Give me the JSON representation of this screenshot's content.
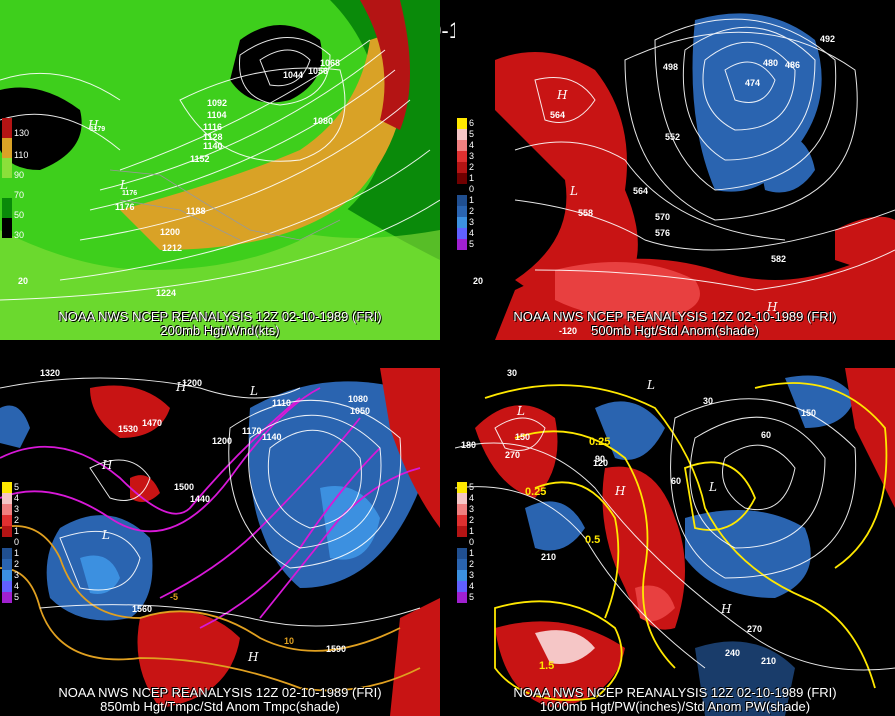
{
  "title": "12Z 02-10-1989 (FRI)",
  "panels": [
    {
      "id": "p200",
      "caption_line1": "NOAA NWS NCEP REANALYSIS 12Z 02-10-1989 (FRI)",
      "caption_line2": "200mb Hgt/Wnd(kts)",
      "legend": [
        "130",
        "110",
        "90",
        "70",
        "50",
        "30"
      ],
      "contour_labels": [
        "1044",
        "1056",
        "1068",
        "1080",
        "1092",
        "1104",
        "1116",
        "1128",
        "1140",
        "1152",
        "1176",
        "1188",
        "1200",
        "1212",
        "1224",
        "1179",
        "1176",
        "20"
      ]
    },
    {
      "id": "p500",
      "caption_line1": "NOAA NWS NCEP REANALYSIS 12Z 02-10-1989 (FRI)",
      "caption_line2": "500mb Hgt/Std Anom(shade)",
      "legend": [
        "6",
        "5",
        "4",
        "3",
        "2",
        "1",
        "0",
        "1",
        "2",
        "3",
        "4",
        "5"
      ],
      "contour_labels": [
        "492",
        "486",
        "480",
        "474",
        "498",
        "564",
        "552",
        "558",
        "564",
        "570",
        "576",
        "582",
        "20",
        "-120"
      ]
    },
    {
      "id": "p850",
      "caption_line1": "NOAA NWS NCEP REANALYSIS 12Z 02-10-1989 (FRI)",
      "caption_line2": "850mb Hgt/Tmpc/Std Anom Tmpc(shade)",
      "legend": [
        "5",
        "4",
        "3",
        "2",
        "1",
        "0",
        "1",
        "2",
        "3",
        "4",
        "5"
      ],
      "contour_labels": [
        "1320",
        "1530",
        "1470",
        "1200",
        "1110",
        "1170",
        "1140",
        "1080",
        "1050",
        "1200",
        "1500",
        "1440",
        "1560",
        "-5",
        "10",
        "1590"
      ]
    },
    {
      "id": "p1000",
      "caption_line1": "NOAA NWS NCEP REANALYSIS 12Z 02-10-1989 (FRI)",
      "caption_line2": "1000mb Hgt/PW(inches)/Std Anom PW(shade)",
      "legend": [
        "5",
        "4",
        "3",
        "2",
        "1",
        "0",
        "1",
        "2",
        "3",
        "4",
        "5"
      ],
      "contour_labels": [
        "180",
        "30",
        "150",
        "90",
        "120",
        "30",
        "60",
        "270",
        "210",
        "0.25",
        "0.25",
        "0.5",
        "1.5",
        "240",
        "210",
        "270",
        "150",
        "60"
      ]
    }
  ],
  "colors": {
    "wind_dark_green": "#0a8a0a",
    "wind_green": "#3ecf1c",
    "wind_light_green": "#8be03a",
    "wind_orange": "#d9a226",
    "wind_red": "#b41414",
    "anom_red": "#c81414",
    "anom_blue": "#2a64b0",
    "pw_yellow": "#ffe800",
    "temp_magenta": "#d818d8",
    "temp_orange": "#e0a020"
  }
}
